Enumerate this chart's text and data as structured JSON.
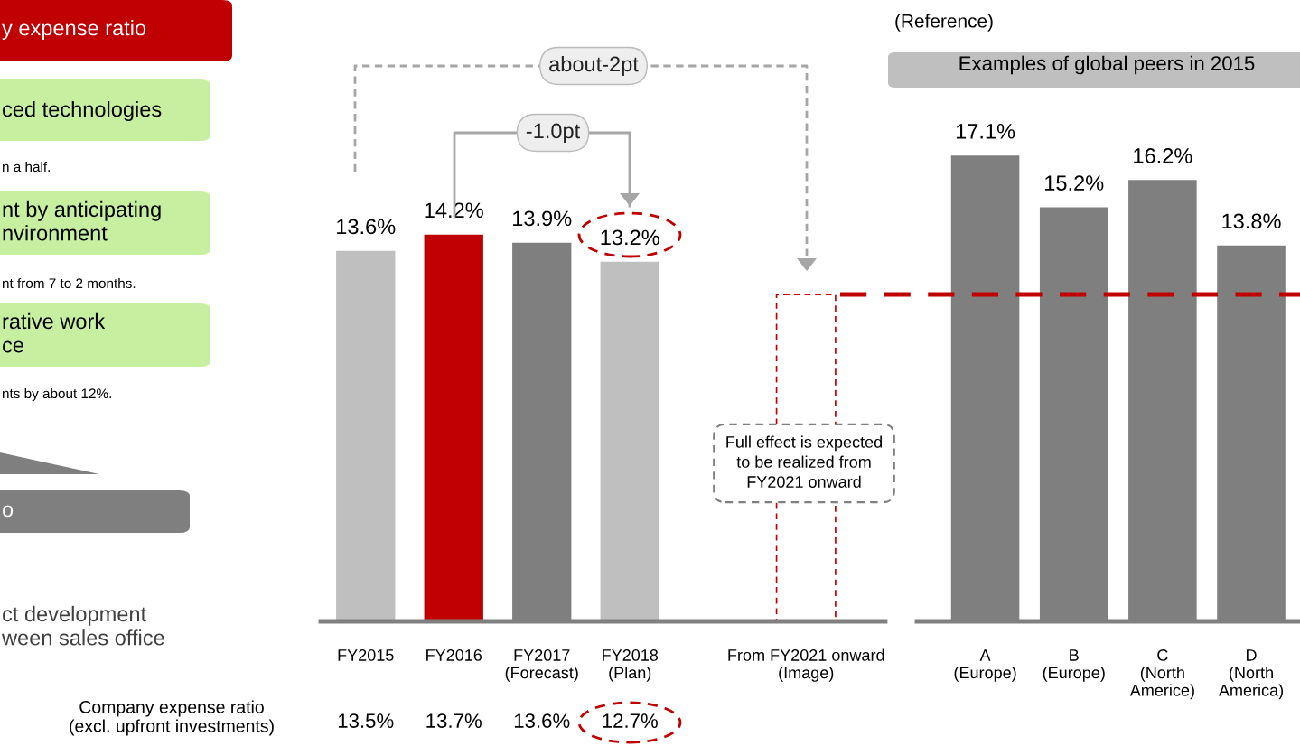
{
  "chart_data": [
    {
      "type": "other",
      "annotations": [
        "y expense ratio",
        "ced technologies",
        "n a half.",
        "nt by anticipating\nnvironment",
        "nt from 7 to 2 months.",
        "rative work\nce",
        "nts by about 12%.",
        "o",
        "ct development\nween sales office"
      ]
    },
    {
      "type": "bar",
      "categories": [
        "FY2015",
        "FY2016",
        "FY2017\n(Forecast)",
        "FY2018\n(Plan)",
        "From FY2021 onward\n(Image)"
      ],
      "values": [
        13.6,
        14.2,
        13.9,
        13.2,
        12.0
      ],
      "colors": [
        "#bfbfbf",
        "#c00000",
        "#7f7f7f",
        "#bfbfbf",
        "#ffffff"
      ],
      "value_labels": [
        "13.6%",
        "14.2%",
        "13.9%",
        "13.2%",
        null
      ],
      "annotations": [
        "about-2pt",
        "-1.0pt",
        "Full effect is expected\nto be realized from\nFY2021 onward",
        "Company expense ratio\n(excl. upfront investments)",
        "13.5%",
        "13.7%",
        "13.6%",
        "12.7%"
      ]
    },
    {
      "type": "bar",
      "title": "Examples of global peers in 2015",
      "subtitle": "(Reference)",
      "categories": [
        "A\n(Europe)",
        "B\n(Europe)",
        "C\n(North\nAmerice)",
        "D\n(North\nAmerica)"
      ],
      "values": [
        17.1,
        15.2,
        16.2,
        13.8
      ],
      "colors": [
        "#7f7f7f",
        "#7f7f7f",
        "#7f7f7f",
        "#7f7f7f"
      ],
      "value_labels": [
        "17.1%",
        "15.2%",
        "16.2%",
        "13.8%"
      ],
      "ref_lines": [
        {
          "axis": "y",
          "value": 12.0,
          "color": "#c00000",
          "line_style": "dashed"
        }
      ]
    }
  ]
}
